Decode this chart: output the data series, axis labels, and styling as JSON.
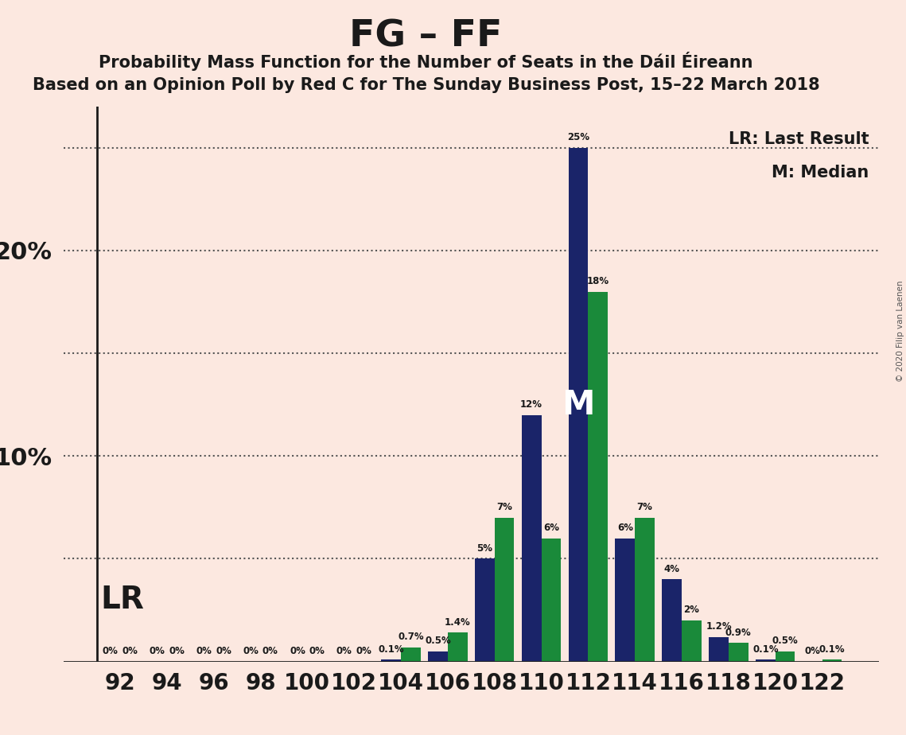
{
  "title": "FG – FF",
  "subtitle1": "Probability Mass Function for the Number of Seats in the Dáil Éireann",
  "subtitle2": "Based on an Opinion Poll by Red C for The Sunday Business Post, 15–22 March 2018",
  "copyright": "© 2020 Filip van Laenen",
  "legend_lr": "LR: Last Result",
  "legend_m": "M: Median",
  "lr_label": "LR",
  "m_label": "M",
  "background_color": "#fce8e0",
  "fg_color": "#1a2469",
  "ff_color": "#1a8a3a",
  "seats": [
    92,
    94,
    96,
    98,
    100,
    102,
    104,
    106,
    108,
    110,
    112,
    114,
    116,
    118,
    120,
    122
  ],
  "fg_values_num": [
    0,
    0,
    0,
    0,
    0,
    0,
    0.1,
    0.5,
    5,
    12,
    25,
    6,
    4,
    1.2,
    0.1,
    0
  ],
  "ff_values_num": [
    0,
    0,
    0,
    0,
    0,
    0,
    0.7,
    1.4,
    7,
    6,
    18,
    7,
    2,
    0.9,
    0.5,
    0.1
  ],
  "fg_pct_labels": [
    "0%",
    "0%",
    "0%",
    "0%",
    "0%",
    "0%",
    "0.1%",
    "0.5%",
    "5%",
    "12%",
    "25%",
    "6%",
    "4%",
    "1.2%",
    "0.1%",
    "0%"
  ],
  "ff_pct_labels": [
    "0%",
    "0%",
    "0%",
    "0%",
    "0%",
    "0%",
    "0.7%",
    "1.4%",
    "7%",
    "6%",
    "18%",
    "7%",
    "2%",
    "0.9%",
    "0.5%",
    "0.1%"
  ],
  "ylim": [
    0,
    27
  ],
  "dotted_lines_y": [
    5,
    10,
    15,
    20,
    25
  ],
  "lr_seat_index": 10,
  "median_fg_index": 10,
  "bar_width": 0.42
}
